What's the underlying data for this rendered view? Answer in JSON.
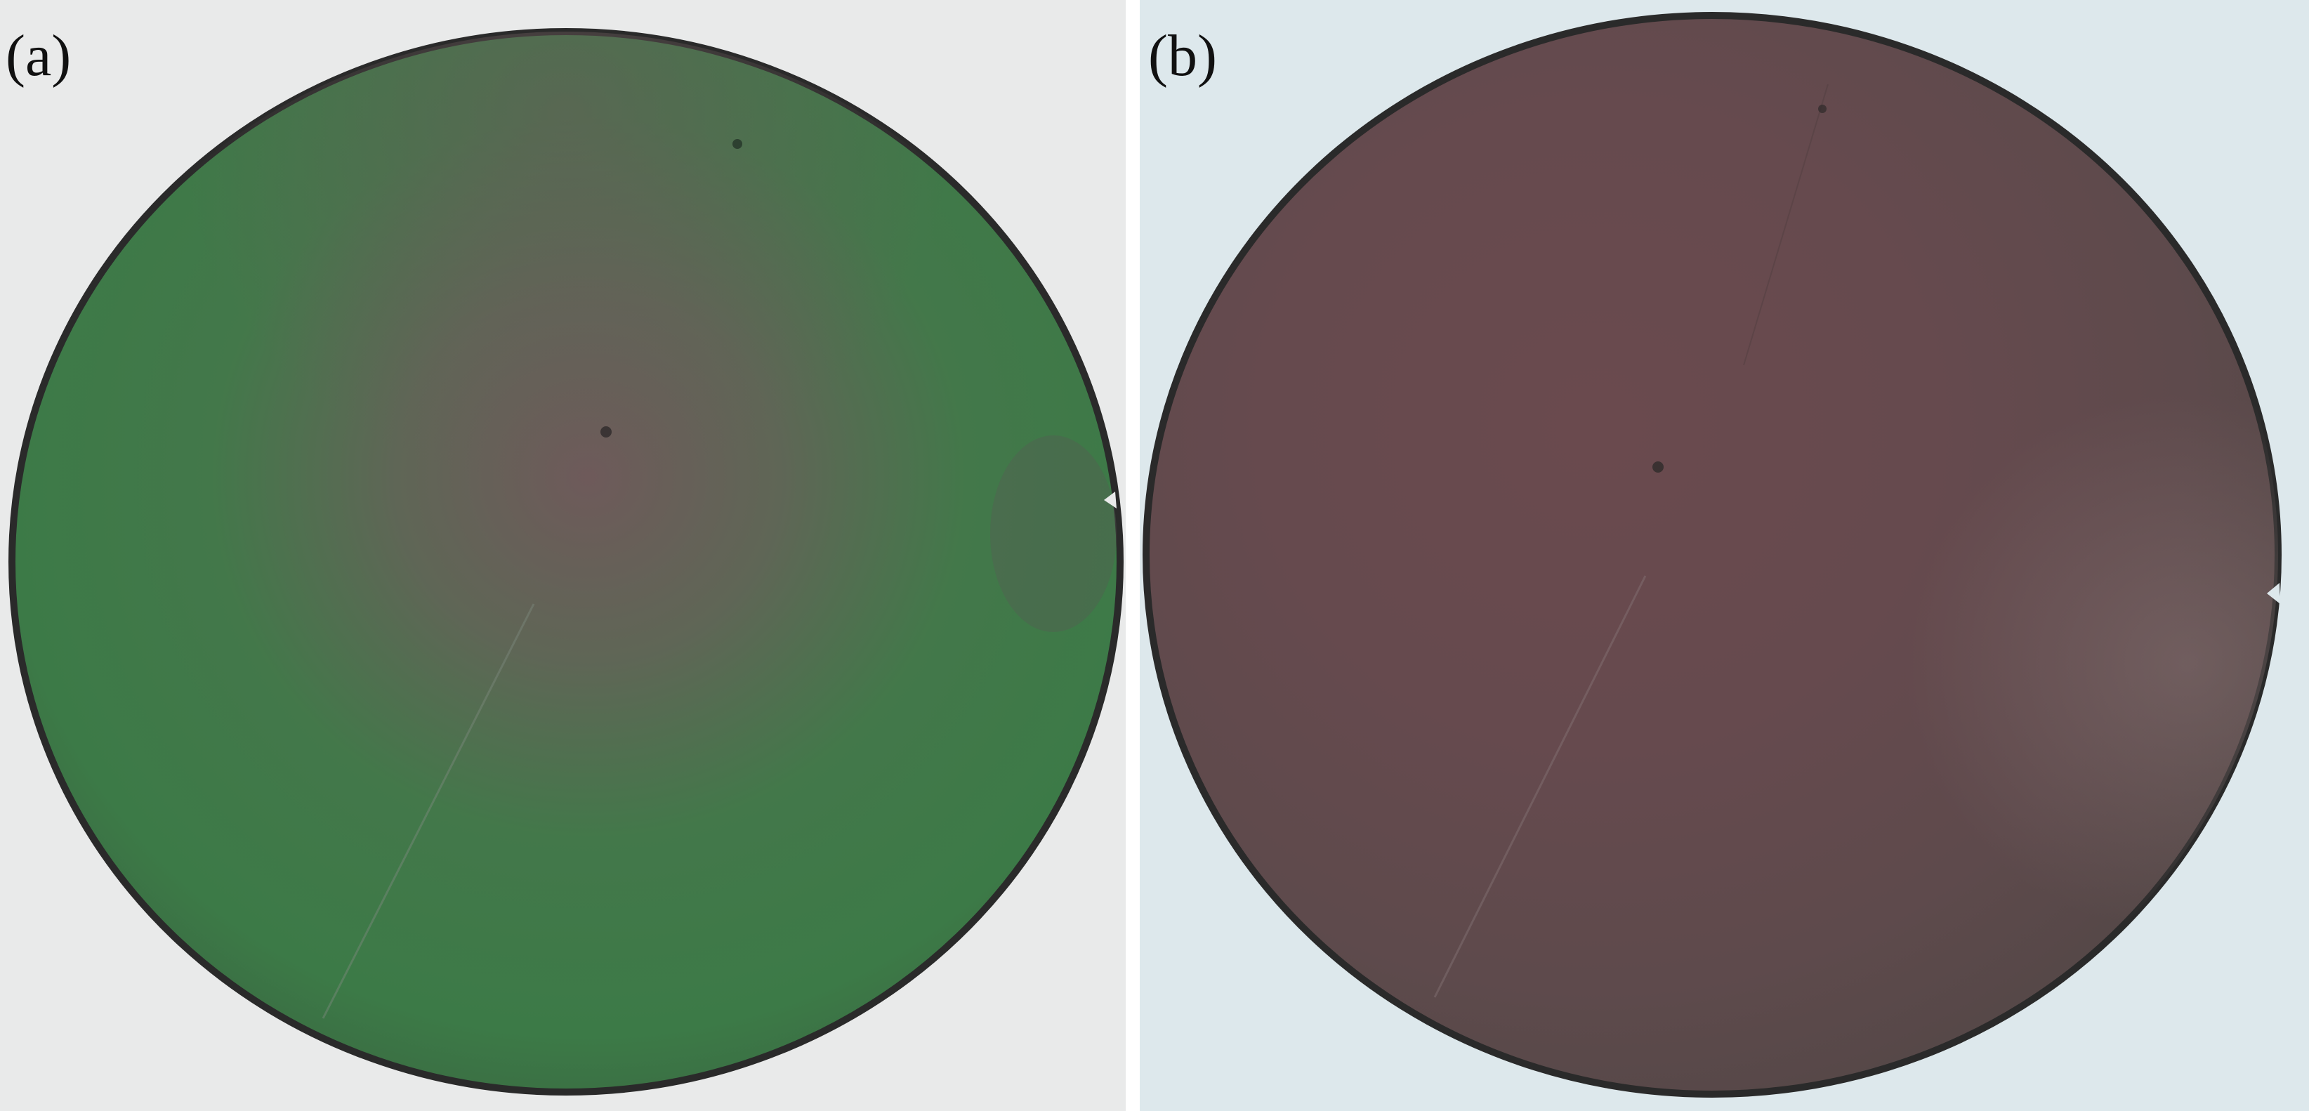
{
  "figure": {
    "panels": [
      {
        "label": "(a)",
        "subject": "wafer",
        "colors": {
          "background": "#e9eaea",
          "center": "#6e5a5a",
          "edge": "#3d7a48",
          "rim": "#2a2a2a"
        }
      },
      {
        "label": "(b)",
        "subject": "wafer",
        "colors": {
          "background": "#dde8ec",
          "center": "#6a4a4e",
          "edge": "#5c4548",
          "rim": "#2a2a2a"
        }
      }
    ]
  }
}
